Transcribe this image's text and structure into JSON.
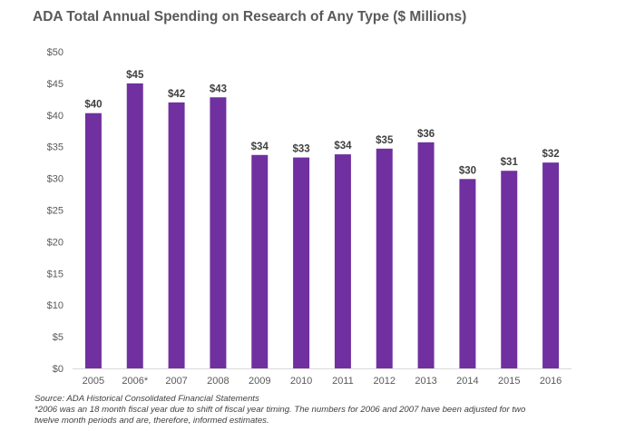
{
  "chart_data": {
    "type": "bar",
    "title": "ADA Total Annual Spending on Research of Any Type ($ Millions)",
    "categories": [
      "2005",
      "2006*",
      "2007",
      "2008",
      "2009",
      "2010",
      "2011",
      "2012",
      "2013",
      "2014",
      "2015",
      "2016"
    ],
    "values": [
      40.3,
      45.0,
      42.0,
      42.8,
      33.7,
      33.3,
      33.8,
      34.7,
      35.7,
      29.9,
      31.2,
      32.5
    ],
    "data_labels": [
      "$40",
      "$45",
      "$42",
      "$43",
      "$34",
      "$33",
      "$34",
      "$35",
      "$36",
      "$30",
      "$31",
      "$32"
    ],
    "ylim": [
      0,
      50
    ],
    "yticks": [
      0,
      5,
      10,
      15,
      20,
      25,
      30,
      35,
      40,
      45,
      50
    ],
    "ytick_labels": [
      "$0",
      "$5",
      "$10",
      "$15",
      "$20",
      "$25",
      "$30",
      "$35",
      "$40",
      "$45",
      "$50"
    ],
    "xlabel": "",
    "ylabel": "",
    "grid": false,
    "bar_color": "#7030A0"
  },
  "footnotes": {
    "source": "Source: ADA Historical Consolidated Financial Statements",
    "note_line1": "*2006 was an 18 month fiscal year due to shift of fiscal year timing.  The numbers for 2006 and 2007 have been adjusted for two",
    "note_line2": "twelve month periods and are, therefore, informed estimates."
  }
}
